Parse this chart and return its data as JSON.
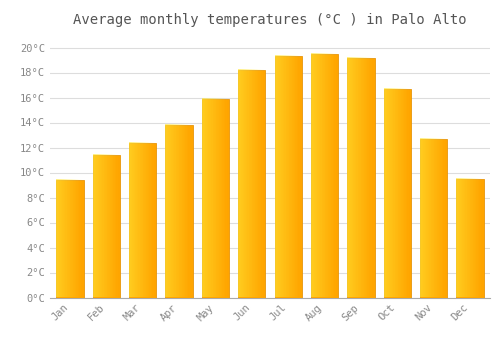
{
  "months": [
    "Jan",
    "Feb",
    "Mar",
    "Apr",
    "May",
    "Jun",
    "Jul",
    "Aug",
    "Sep",
    "Oct",
    "Nov",
    "Dec"
  ],
  "temperatures": [
    9.4,
    11.4,
    12.4,
    13.8,
    15.9,
    18.2,
    19.3,
    19.5,
    19.2,
    16.7,
    12.7,
    9.5
  ],
  "bar_color_left": "#FFD060",
  "bar_color_right": "#FFA500",
  "bar_edge_color": "#E8960A",
  "background_color": "#FFFFFF",
  "grid_color": "#DDDDDD",
  "title": "Average monthly temperatures (°C ) in Palo Alto",
  "title_fontsize": 10,
  "ylim": [
    0,
    21
  ],
  "ytick_step": 2,
  "tick_label_suffix": "°C",
  "tick_fontsize": 7.5,
  "xlabel_fontsize": 7.5,
  "bar_width": 0.75
}
